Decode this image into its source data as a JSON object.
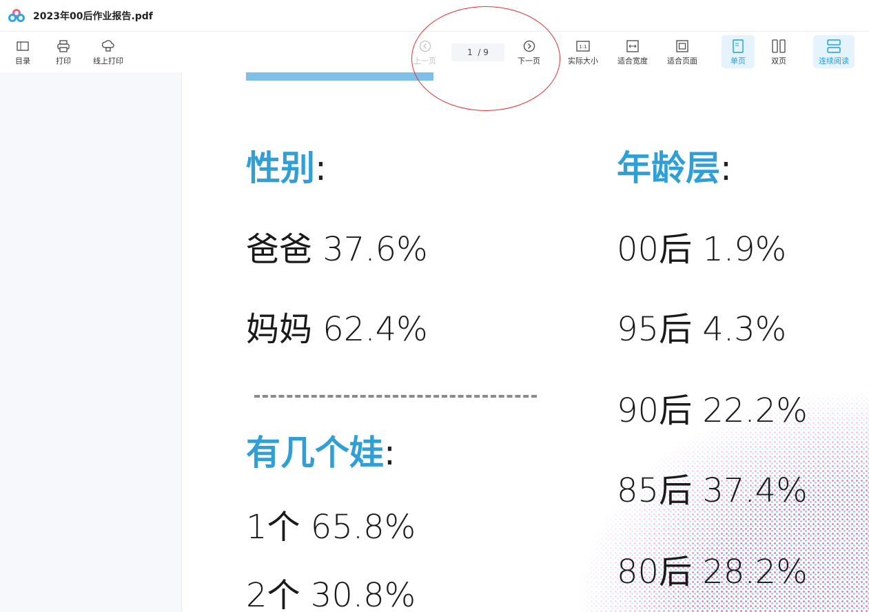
{
  "window": {
    "title": "2023年00后作业报告.pdf"
  },
  "toolbar": {
    "left": [
      {
        "label": "目录",
        "icon": "toc-icon"
      },
      {
        "label": "打印",
        "icon": "printer-icon"
      },
      {
        "label": "线上打印",
        "icon": "cloud-print-icon"
      }
    ],
    "prev": "上一页",
    "next": "下一页",
    "page_current": "1",
    "page_total": "9",
    "zoom": [
      {
        "label": "实际大小",
        "icon": "actual-size-icon"
      },
      {
        "label": "适合宽度",
        "icon": "fit-width-icon"
      },
      {
        "label": "适合页面",
        "icon": "fit-page-icon"
      }
    ],
    "view": [
      {
        "label": "单页",
        "icon": "single-page-icon",
        "active": true
      },
      {
        "label": "双页",
        "icon": "double-page-icon",
        "active": false
      }
    ],
    "continuous": {
      "label": "连续阅读",
      "icon": "continuous-icon",
      "active": true
    },
    "accent": "#1aa0e0"
  },
  "document": {
    "gender": {
      "heading": "性别",
      "colon": ":",
      "items": [
        "爸爸 37.6%",
        "妈妈 62.4%"
      ]
    },
    "kids": {
      "heading": "有几个娃",
      "colon": ":",
      "items": [
        "1个 65.8%",
        "2个 30.8%"
      ]
    },
    "age": {
      "heading": "年龄层",
      "colon": ":",
      "items": [
        "00后 1.9%",
        "95后 4.3%",
        "90后 22.2%",
        "85后 37.4%",
        "80后 28.2%"
      ]
    },
    "heading_color": "#2f9fd6"
  }
}
